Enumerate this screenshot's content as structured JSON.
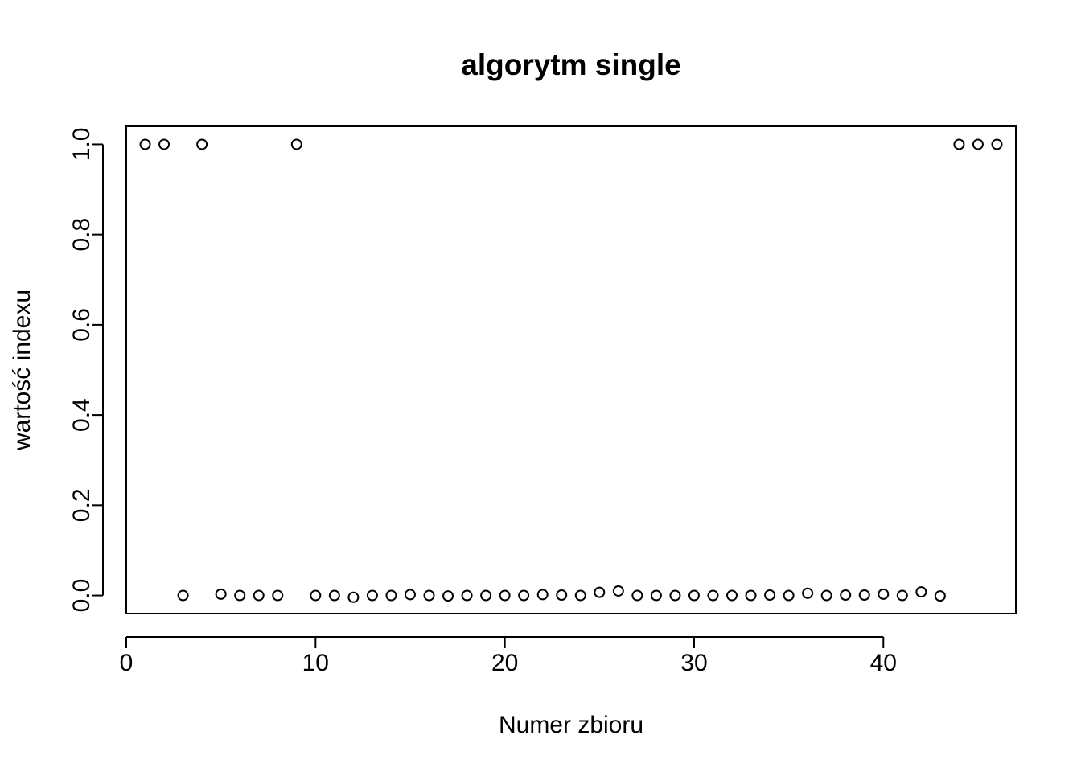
{
  "chart_data": {
    "type": "scatter",
    "title": "algorytm single",
    "xlabel": "Numer zbioru",
    "ylabel": "wartość indexu",
    "xlim": [
      0,
      47
    ],
    "ylim": [
      -0.04,
      1.04
    ],
    "x_ticks": [
      0,
      10,
      20,
      30,
      40
    ],
    "x_tick_labels": [
      "0",
      "10",
      "20",
      "30",
      "40"
    ],
    "y_ticks": [
      0.0,
      0.2,
      0.4,
      0.6,
      0.8,
      1.0
    ],
    "y_tick_labels": [
      "0.0",
      "0.2",
      "0.4",
      "0.6",
      "0.8",
      "1.0"
    ],
    "grid": false,
    "marker": "open-circle",
    "x": [
      1,
      2,
      3,
      4,
      5,
      6,
      7,
      8,
      9,
      10,
      11,
      12,
      13,
      14,
      15,
      16,
      17,
      18,
      19,
      20,
      21,
      22,
      23,
      24,
      25,
      26,
      27,
      28,
      29,
      30,
      31,
      32,
      33,
      34,
      35,
      36,
      37,
      38,
      39,
      40,
      41,
      42,
      43,
      44,
      45,
      46
    ],
    "y": [
      1.0,
      1.0,
      0.0,
      1.0,
      0.003,
      0.0,
      0.0,
      0.0,
      1.0,
      0.0,
      0.0,
      -0.004,
      0.0,
      0.0,
      0.002,
      0.0,
      -0.001,
      0.0,
      0.0,
      0.0,
      0.0,
      0.002,
      0.001,
      0.0,
      0.007,
      0.01,
      0.0,
      0.0,
      0.0,
      0.0,
      0.0,
      0.0,
      0.0,
      0.001,
      0.0,
      0.005,
      0.0,
      0.001,
      0.001,
      0.003,
      0.0,
      0.008,
      -0.001,
      1.0,
      1.0,
      1.0
    ]
  }
}
